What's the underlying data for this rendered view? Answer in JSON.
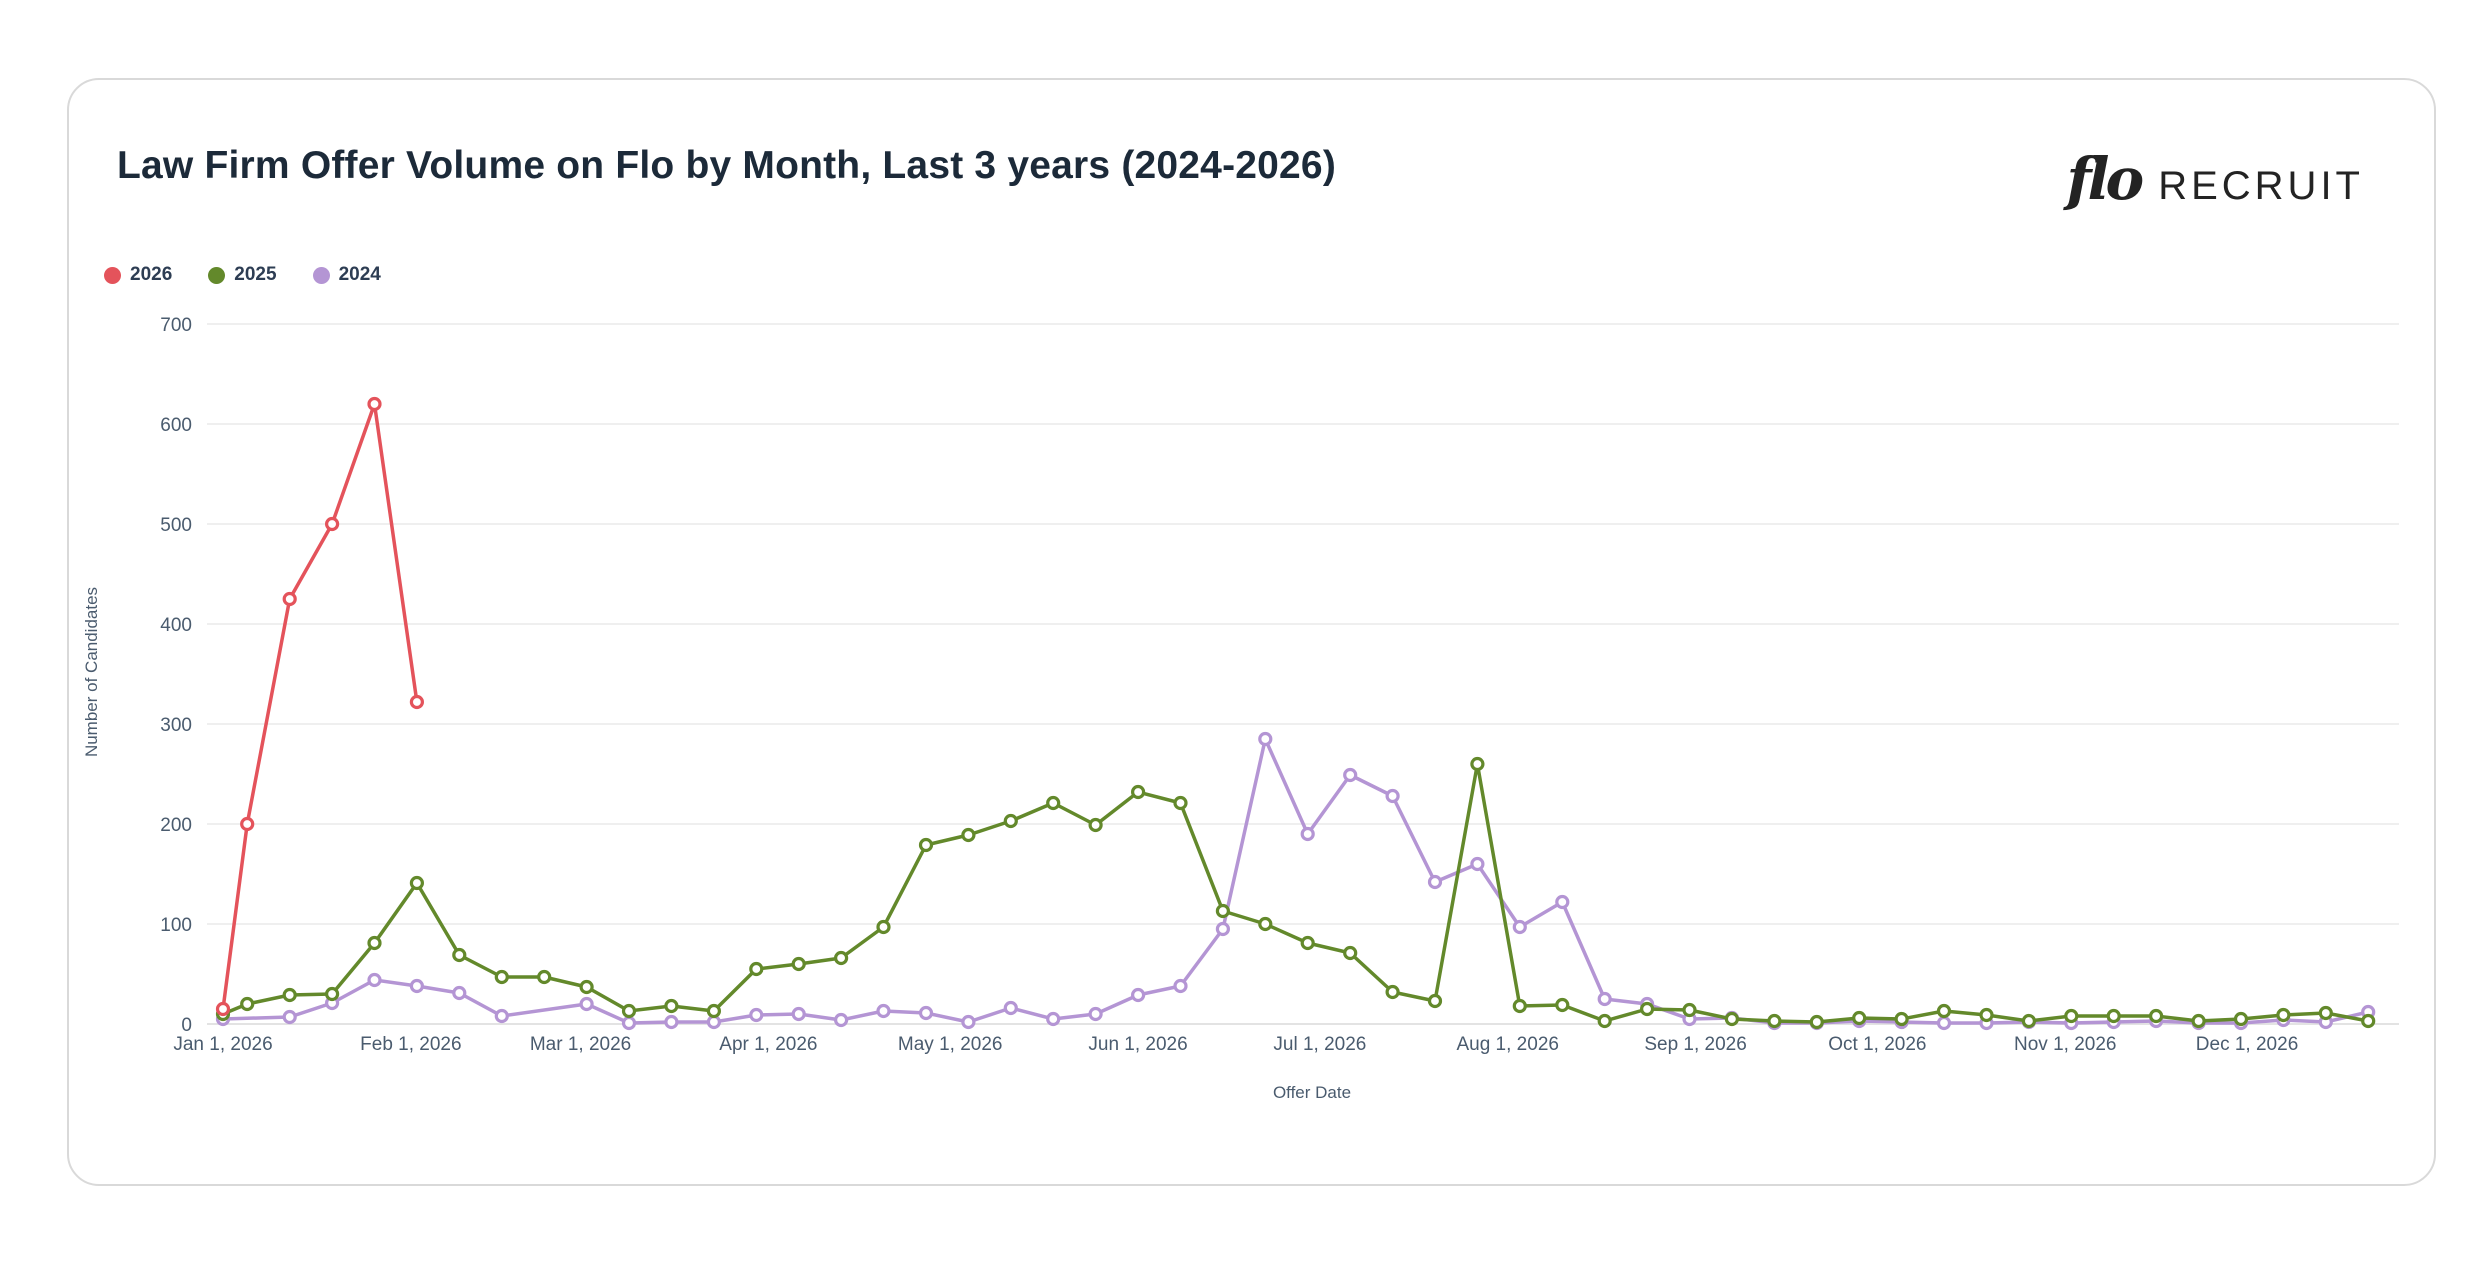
{
  "brand": {
    "logo_script": "flo",
    "logo_wordmark": "RECRUIT"
  },
  "chart_data": {
    "type": "line",
    "title": "Law Firm Offer Volume on Flo by Month, Last 3 years (2024-2026)",
    "xlabel": "Offer Date",
    "ylabel": "Number of Candidates",
    "ylim": [
      0,
      700
    ],
    "yticks": [
      0,
      100,
      200,
      300,
      400,
      500,
      600,
      700
    ],
    "grid": "horizontal",
    "legend_position": "top-left",
    "x_ticks": [
      {
        "label": "Jan 1, 2026",
        "day": 0
      },
      {
        "label": "Feb 1, 2026",
        "day": 31
      },
      {
        "label": "Mar 1, 2026",
        "day": 59
      },
      {
        "label": "Apr 1, 2026",
        "day": 90
      },
      {
        "label": "May 1, 2026",
        "day": 120
      },
      {
        "label": "Jun 1, 2026",
        "day": 151
      },
      {
        "label": "Jul 1, 2026",
        "day": 181
      },
      {
        "label": "Aug 1, 2026",
        "day": 212
      },
      {
        "label": "Sep 1, 2026",
        "day": 243
      },
      {
        "label": "Oct 1, 2026",
        "day": 273
      },
      {
        "label": "Nov 1, 2026",
        "day": 304
      },
      {
        "label": "Dec 1, 2026",
        "day": 334
      }
    ],
    "x_dates": [
      "Jan 1",
      "Jan 5",
      "Jan 12",
      "Jan 19",
      "Jan 26",
      "Feb 2",
      "Feb 9",
      "Feb 16",
      "Feb 23",
      "Mar 2",
      "Mar 9",
      "Mar 16",
      "Mar 23",
      "Mar 30",
      "Apr 6",
      "Apr 13",
      "Apr 20",
      "Apr 27",
      "May 4",
      "May 11",
      "May 18",
      "May 25",
      "Jun 1",
      "Jun 8",
      "Jun 15",
      "Jun 22",
      "Jun 29",
      "Jul 6",
      "Jul 13",
      "Jul 20",
      "Jul 27",
      "Aug 3",
      "Aug 10",
      "Aug 17",
      "Aug 24",
      "Aug 31",
      "Sep 7",
      "Sep 14",
      "Sep 21",
      "Sep 28",
      "Oct 5",
      "Oct 12",
      "Oct 19",
      "Oct 26",
      "Nov 2",
      "Nov 9",
      "Nov 16",
      "Nov 23",
      "Nov 30",
      "Dec 7",
      "Dec 14",
      "Dec 21"
    ],
    "x_day_offsets": [
      0,
      4,
      11,
      18,
      25,
      32,
      39,
      46,
      53,
      60,
      67,
      74,
      81,
      88,
      95,
      102,
      109,
      116,
      123,
      130,
      137,
      144,
      151,
      158,
      165,
      172,
      179,
      186,
      193,
      200,
      207,
      214,
      221,
      228,
      235,
      242,
      249,
      256,
      263,
      270,
      277,
      284,
      291,
      298,
      305,
      312,
      319,
      326,
      333,
      340,
      347,
      354
    ],
    "series": [
      {
        "name": "2026",
        "color": "#e4535b",
        "values": [
          15,
          200,
          425,
          500,
          620,
          322,
          null,
          null,
          null,
          null,
          null,
          null,
          null,
          null,
          null,
          null,
          null,
          null,
          null,
          null,
          null,
          null,
          null,
          null,
          null,
          null,
          null,
          null,
          null,
          null,
          null,
          null,
          null,
          null,
          null,
          null,
          null,
          null,
          null,
          null,
          null,
          null,
          null,
          null,
          null,
          null,
          null,
          null,
          null,
          null,
          null,
          null
        ]
      },
      {
        "name": "2025",
        "color": "#63892b",
        "values": [
          10,
          20,
          29,
          30,
          81,
          141,
          69,
          47,
          47,
          37,
          13,
          18,
          13,
          55,
          60,
          66,
          97,
          179,
          189,
          203,
          221,
          199,
          232,
          221,
          113,
          100,
          81,
          71,
          32,
          23,
          260,
          18,
          19,
          3,
          15,
          14,
          5,
          3,
          2,
          6,
          5,
          13,
          9,
          3,
          8,
          8,
          8,
          3,
          5,
          9,
          11,
          3
        ]
      },
      {
        "name": "2024",
        "color": "#b495d4",
        "values": [
          5,
          null,
          7,
          21,
          44,
          38,
          31,
          8,
          null,
          20,
          1,
          2,
          2,
          9,
          10,
          4,
          13,
          11,
          2,
          16,
          5,
          10,
          29,
          38,
          95,
          285,
          190,
          249,
          228,
          142,
          160,
          97,
          122,
          25,
          20,
          5,
          6,
          1,
          1,
          3,
          2,
          1,
          1,
          2,
          1,
          2,
          3,
          1,
          1,
          4,
          2,
          12
        ]
      }
    ]
  }
}
